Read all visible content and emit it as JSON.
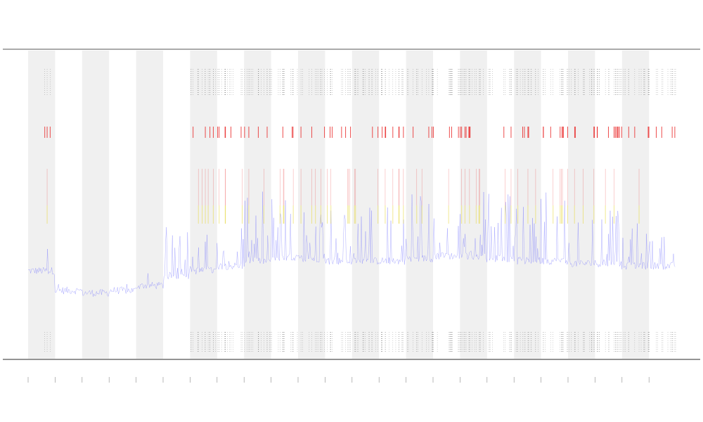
{
  "colors": {
    "background": "#ffffff",
    "band": "#f0f0f0",
    "signal": "#6a6aff",
    "alert_red": "#e82020",
    "alert_yellow": "#e8d84a",
    "event_tick": "#333333",
    "frame": "#555555"
  },
  "chart_data": {
    "type": "line",
    "title": "",
    "xlabel": "",
    "ylabel": "",
    "legend_text": "",
    "x_tick_count": 24,
    "shaded_band_indices": [
      0,
      2,
      4,
      6,
      8,
      10,
      12,
      14,
      16,
      18,
      20,
      22
    ],
    "series": [
      {
        "values_note": "",
        "baseline_by_band": [
          0.18,
          0.1,
          0.09,
          0.1,
          0.12,
          0.16,
          0.18,
          0.2,
          0.22,
          0.23,
          0.23,
          0.22,
          0.22,
          0.22,
          0.23,
          0.24,
          0.24,
          0.23,
          0.22,
          0.22,
          0.21,
          0.21,
          0.2,
          0.2
        ],
        "activity_by_band": [
          0.4,
          0.1,
          0.05,
          0.08,
          0.15,
          0.6,
          0.5,
          0.5,
          0.8,
          0.7,
          0.7,
          0.8,
          0.7,
          0.8,
          0.8,
          0.8,
          0.8,
          0.8,
          0.7,
          0.8,
          0.7,
          0.7,
          0.5,
          0.4
        ]
      }
    ],
    "event_bands": [
      0,
      6,
      7,
      8,
      9,
      10,
      11,
      12,
      13,
      14,
      15,
      16,
      17,
      18,
      19,
      20,
      21,
      22,
      23
    ]
  }
}
